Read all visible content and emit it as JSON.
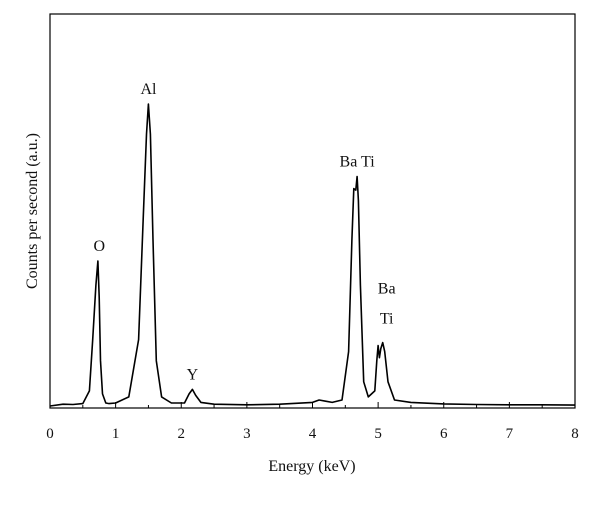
{
  "chart_data": {
    "type": "line",
    "title": "",
    "xlabel": "Energy (keV)",
    "ylabel": "Counts per second (a.u.)",
    "xlim": [
      0,
      8
    ],
    "ylim": [
      0,
      1
    ],
    "x_ticks": [
      "0",
      "1",
      "2",
      "3",
      "4",
      "5",
      "6",
      "7",
      "8"
    ],
    "y_ticks_labeled": false,
    "grid": false,
    "legend": "none",
    "series": [
      {
        "color": "#000000",
        "x": [
          0.0,
          0.2,
          0.35,
          0.5,
          0.6,
          0.65,
          0.7,
          0.73,
          0.75,
          0.77,
          0.8,
          0.85,
          0.9,
          1.0,
          1.2,
          1.35,
          1.42,
          1.47,
          1.5,
          1.53,
          1.57,
          1.62,
          1.7,
          1.85,
          2.05,
          2.12,
          2.17,
          2.22,
          2.3,
          2.5,
          3.0,
          3.5,
          4.0,
          4.1,
          4.2,
          4.3,
          4.45,
          4.55,
          4.6,
          4.63,
          4.66,
          4.68,
          4.7,
          4.73,
          4.78,
          4.85,
          4.95,
          4.98,
          5.0,
          5.02,
          5.04,
          5.07,
          5.1,
          5.15,
          5.25,
          5.5,
          6.0,
          6.5,
          7.0,
          7.5,
          8.0
        ],
        "y": [
          0.0,
          0.006,
          0.005,
          0.008,
          0.05,
          0.22,
          0.4,
          0.48,
          0.36,
          0.15,
          0.04,
          0.01,
          0.008,
          0.01,
          0.03,
          0.22,
          0.62,
          0.9,
          1.0,
          0.9,
          0.55,
          0.15,
          0.03,
          0.01,
          0.01,
          0.04,
          0.055,
          0.035,
          0.012,
          0.006,
          0.004,
          0.006,
          0.012,
          0.02,
          0.016,
          0.012,
          0.02,
          0.18,
          0.55,
          0.72,
          0.715,
          0.76,
          0.68,
          0.4,
          0.08,
          0.03,
          0.05,
          0.15,
          0.2,
          0.16,
          0.19,
          0.21,
          0.18,
          0.08,
          0.02,
          0.012,
          0.007,
          0.005,
          0.004,
          0.004,
          0.003
        ]
      }
    ],
    "annotations": [
      {
        "label": "O",
        "x": 0.75,
        "y": 0.48
      },
      {
        "label": "Al",
        "x": 1.5,
        "y": 1.0
      },
      {
        "label": "Y",
        "x": 2.17,
        "y": 0.055
      },
      {
        "label": "Ba Ti",
        "x": 4.68,
        "y": 0.76
      },
      {
        "label": "Ba",
        "x": 5.13,
        "y": 0.34
      },
      {
        "label": "Ti",
        "x": 5.13,
        "y": 0.24
      }
    ]
  }
}
